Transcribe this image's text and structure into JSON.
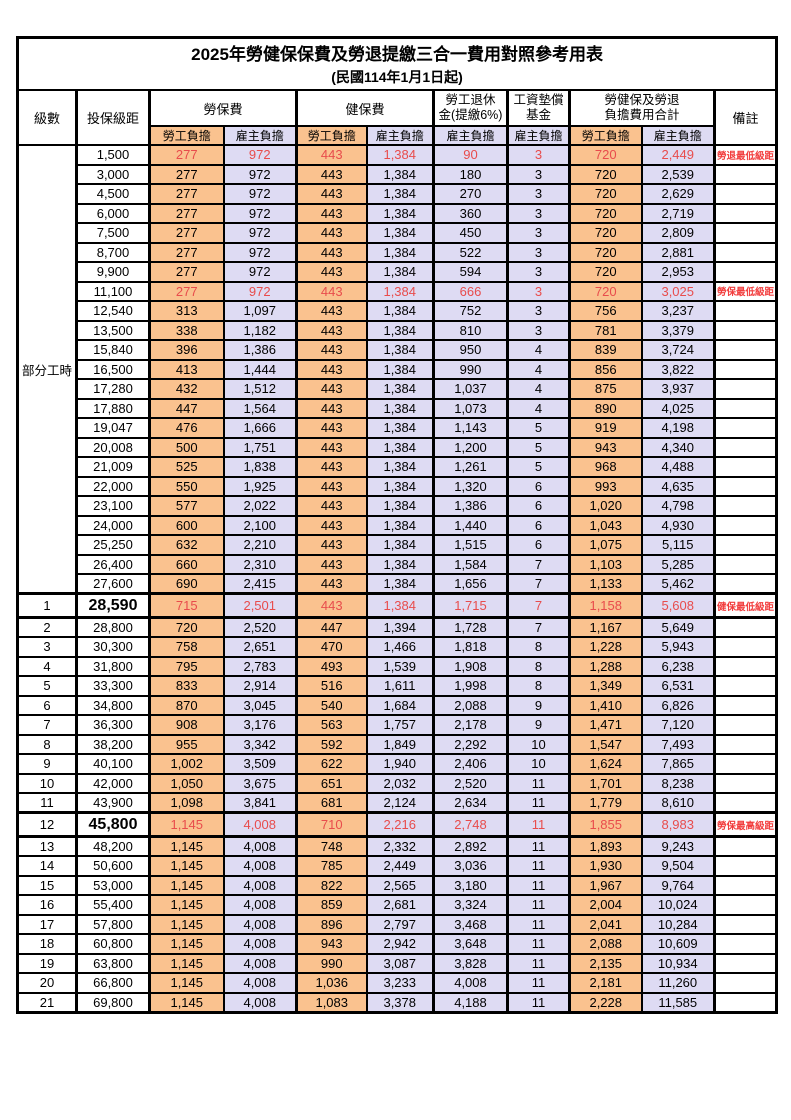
{
  "title": "2025年勞健保保費及勞退提繳三合一費用對照參考用表",
  "subtitle": "(民國114年1月1日起)",
  "header": {
    "level": "級數",
    "bracket": "投保級距",
    "labor_insurance": "勞保費",
    "health_insurance": "健保費",
    "pension_line1": "勞工退休",
    "pension_line2": "金(提繳6%)",
    "wage_fund_line1": "工資墊償",
    "wage_fund_line2": "基金",
    "total_line1": "勞健保及勞退",
    "total_line2": "負擔費用合計",
    "remark": "備註",
    "employee": "勞工負擔",
    "employer": "雇主負擔"
  },
  "part_time_label": "部分工時",
  "colors": {
    "employee_column_bg": "#FAC28F",
    "employer_column_bg": "#DEDBF3",
    "highlight_value_text": "#E84C4C",
    "remark_text": "#F23D3D",
    "border": "#000000"
  },
  "rows": [
    {
      "level": "",
      "bracket": "1,500",
      "v": [
        "277",
        "972",
        "443",
        "1,384",
        "90",
        "3",
        "720",
        "2,449"
      ],
      "remark": "勞退最低級距",
      "hl": true
    },
    {
      "level": "",
      "bracket": "3,000",
      "v": [
        "277",
        "972",
        "443",
        "1,384",
        "180",
        "3",
        "720",
        "2,539"
      ],
      "remark": ""
    },
    {
      "level": "",
      "bracket": "4,500",
      "v": [
        "277",
        "972",
        "443",
        "1,384",
        "270",
        "3",
        "720",
        "2,629"
      ],
      "remark": ""
    },
    {
      "level": "",
      "bracket": "6,000",
      "v": [
        "277",
        "972",
        "443",
        "1,384",
        "360",
        "3",
        "720",
        "2,719"
      ],
      "remark": ""
    },
    {
      "level": "",
      "bracket": "7,500",
      "v": [
        "277",
        "972",
        "443",
        "1,384",
        "450",
        "3",
        "720",
        "2,809"
      ],
      "remark": ""
    },
    {
      "level": "",
      "bracket": "8,700",
      "v": [
        "277",
        "972",
        "443",
        "1,384",
        "522",
        "3",
        "720",
        "2,881"
      ],
      "remark": ""
    },
    {
      "level": "",
      "bracket": "9,900",
      "v": [
        "277",
        "972",
        "443",
        "1,384",
        "594",
        "3",
        "720",
        "2,953"
      ],
      "remark": ""
    },
    {
      "level": "",
      "bracket": "11,100",
      "v": [
        "277",
        "972",
        "443",
        "1,384",
        "666",
        "3",
        "720",
        "3,025"
      ],
      "remark": "勞保最低級距",
      "hl": true
    },
    {
      "level": "",
      "bracket": "12,540",
      "v": [
        "313",
        "1,097",
        "443",
        "1,384",
        "752",
        "3",
        "756",
        "3,237"
      ],
      "remark": ""
    },
    {
      "level": "",
      "bracket": "13,500",
      "v": [
        "338",
        "1,182",
        "443",
        "1,384",
        "810",
        "3",
        "781",
        "3,379"
      ],
      "remark": ""
    },
    {
      "level": "",
      "bracket": "15,840",
      "v": [
        "396",
        "1,386",
        "443",
        "1,384",
        "950",
        "4",
        "839",
        "3,724"
      ],
      "remark": ""
    },
    {
      "level": "",
      "bracket": "16,500",
      "v": [
        "413",
        "1,444",
        "443",
        "1,384",
        "990",
        "4",
        "856",
        "3,822"
      ],
      "remark": ""
    },
    {
      "level": "",
      "bracket": "17,280",
      "v": [
        "432",
        "1,512",
        "443",
        "1,384",
        "1,037",
        "4",
        "875",
        "3,937"
      ],
      "remark": ""
    },
    {
      "level": "",
      "bracket": "17,880",
      "v": [
        "447",
        "1,564",
        "443",
        "1,384",
        "1,073",
        "4",
        "890",
        "4,025"
      ],
      "remark": ""
    },
    {
      "level": "",
      "bracket": "19,047",
      "v": [
        "476",
        "1,666",
        "443",
        "1,384",
        "1,143",
        "5",
        "919",
        "4,198"
      ],
      "remark": ""
    },
    {
      "level": "",
      "bracket": "20,008",
      "v": [
        "500",
        "1,751",
        "443",
        "1,384",
        "1,200",
        "5",
        "943",
        "4,340"
      ],
      "remark": ""
    },
    {
      "level": "",
      "bracket": "21,009",
      "v": [
        "525",
        "1,838",
        "443",
        "1,384",
        "1,261",
        "5",
        "968",
        "4,488"
      ],
      "remark": ""
    },
    {
      "level": "",
      "bracket": "22,000",
      "v": [
        "550",
        "1,925",
        "443",
        "1,384",
        "1,320",
        "6",
        "993",
        "4,635"
      ],
      "remark": ""
    },
    {
      "level": "",
      "bracket": "23,100",
      "v": [
        "577",
        "2,022",
        "443",
        "1,384",
        "1,386",
        "6",
        "1,020",
        "4,798"
      ],
      "remark": ""
    },
    {
      "level": "",
      "bracket": "24,000",
      "v": [
        "600",
        "2,100",
        "443",
        "1,384",
        "1,440",
        "6",
        "1,043",
        "4,930"
      ],
      "remark": ""
    },
    {
      "level": "",
      "bracket": "25,250",
      "v": [
        "632",
        "2,210",
        "443",
        "1,384",
        "1,515",
        "6",
        "1,075",
        "5,115"
      ],
      "remark": ""
    },
    {
      "level": "",
      "bracket": "26,400",
      "v": [
        "660",
        "2,310",
        "443",
        "1,384",
        "1,584",
        "7",
        "1,103",
        "5,285"
      ],
      "remark": ""
    },
    {
      "level": "",
      "bracket": "27,600",
      "v": [
        "690",
        "2,415",
        "443",
        "1,384",
        "1,656",
        "7",
        "1,133",
        "5,462"
      ],
      "remark": ""
    },
    {
      "level": "1",
      "bracket": "28,590",
      "v": [
        "715",
        "2,501",
        "443",
        "1,384",
        "1,715",
        "7",
        "1,158",
        "5,608"
      ],
      "remark": "健保最低級距",
      "hl": true,
      "big": true
    },
    {
      "level": "2",
      "bracket": "28,800",
      "v": [
        "720",
        "2,520",
        "447",
        "1,394",
        "1,728",
        "7",
        "1,167",
        "5,649"
      ],
      "remark": ""
    },
    {
      "level": "3",
      "bracket": "30,300",
      "v": [
        "758",
        "2,651",
        "470",
        "1,466",
        "1,818",
        "8",
        "1,228",
        "5,943"
      ],
      "remark": ""
    },
    {
      "level": "4",
      "bracket": "31,800",
      "v": [
        "795",
        "2,783",
        "493",
        "1,539",
        "1,908",
        "8",
        "1,288",
        "6,238"
      ],
      "remark": ""
    },
    {
      "level": "5",
      "bracket": "33,300",
      "v": [
        "833",
        "2,914",
        "516",
        "1,611",
        "1,998",
        "8",
        "1,349",
        "6,531"
      ],
      "remark": ""
    },
    {
      "level": "6",
      "bracket": "34,800",
      "v": [
        "870",
        "3,045",
        "540",
        "1,684",
        "2,088",
        "9",
        "1,410",
        "6,826"
      ],
      "remark": ""
    },
    {
      "level": "7",
      "bracket": "36,300",
      "v": [
        "908",
        "3,176",
        "563",
        "1,757",
        "2,178",
        "9",
        "1,471",
        "7,120"
      ],
      "remark": ""
    },
    {
      "level": "8",
      "bracket": "38,200",
      "v": [
        "955",
        "3,342",
        "592",
        "1,849",
        "2,292",
        "10",
        "1,547",
        "7,493"
      ],
      "remark": ""
    },
    {
      "level": "9",
      "bracket": "40,100",
      "v": [
        "1,002",
        "3,509",
        "622",
        "1,940",
        "2,406",
        "10",
        "1,624",
        "7,865"
      ],
      "remark": ""
    },
    {
      "level": "10",
      "bracket": "42,000",
      "v": [
        "1,050",
        "3,675",
        "651",
        "2,032",
        "2,520",
        "11",
        "1,701",
        "8,238"
      ],
      "remark": ""
    },
    {
      "level": "11",
      "bracket": "43,900",
      "v": [
        "1,098",
        "3,841",
        "681",
        "2,124",
        "2,634",
        "11",
        "1,779",
        "8,610"
      ],
      "remark": ""
    },
    {
      "level": "12",
      "bracket": "45,800",
      "v": [
        "1,145",
        "4,008",
        "710",
        "2,216",
        "2,748",
        "11",
        "1,855",
        "8,983"
      ],
      "remark": "勞保最高級距",
      "hl": true,
      "big": true
    },
    {
      "level": "13",
      "bracket": "48,200",
      "v": [
        "1,145",
        "4,008",
        "748",
        "2,332",
        "2,892",
        "11",
        "1,893",
        "9,243"
      ],
      "remark": ""
    },
    {
      "level": "14",
      "bracket": "50,600",
      "v": [
        "1,145",
        "4,008",
        "785",
        "2,449",
        "3,036",
        "11",
        "1,930",
        "9,504"
      ],
      "remark": ""
    },
    {
      "level": "15",
      "bracket": "53,000",
      "v": [
        "1,145",
        "4,008",
        "822",
        "2,565",
        "3,180",
        "11",
        "1,967",
        "9,764"
      ],
      "remark": ""
    },
    {
      "level": "16",
      "bracket": "55,400",
      "v": [
        "1,145",
        "4,008",
        "859",
        "2,681",
        "3,324",
        "11",
        "2,004",
        "10,024"
      ],
      "remark": ""
    },
    {
      "level": "17",
      "bracket": "57,800",
      "v": [
        "1,145",
        "4,008",
        "896",
        "2,797",
        "3,468",
        "11",
        "2,041",
        "10,284"
      ],
      "remark": ""
    },
    {
      "level": "18",
      "bracket": "60,800",
      "v": [
        "1,145",
        "4,008",
        "943",
        "2,942",
        "3,648",
        "11",
        "2,088",
        "10,609"
      ],
      "remark": ""
    },
    {
      "level": "19",
      "bracket": "63,800",
      "v": [
        "1,145",
        "4,008",
        "990",
        "3,087",
        "3,828",
        "11",
        "2,135",
        "10,934"
      ],
      "remark": ""
    },
    {
      "level": "20",
      "bracket": "66,800",
      "v": [
        "1,145",
        "4,008",
        "1,036",
        "3,233",
        "4,008",
        "11",
        "2,181",
        "11,260"
      ],
      "remark": ""
    },
    {
      "level": "21",
      "bracket": "69,800",
      "v": [
        "1,145",
        "4,008",
        "1,083",
        "3,378",
        "4,188",
        "11",
        "2,228",
        "11,585"
      ],
      "remark": ""
    }
  ]
}
